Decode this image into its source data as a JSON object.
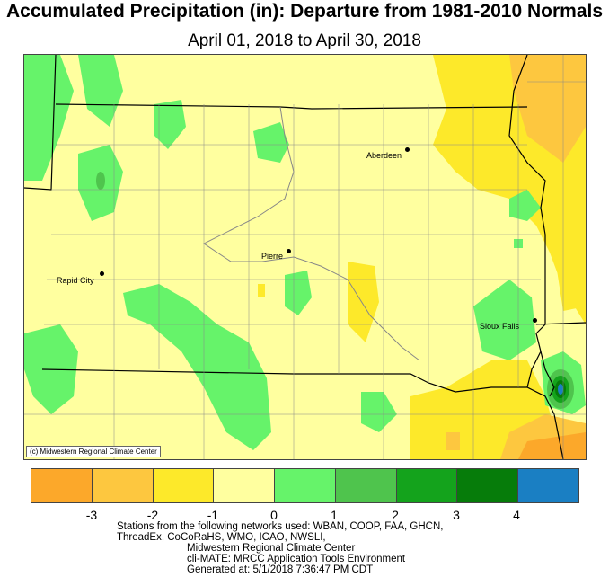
{
  "title": "Accumulated Precipitation (in): Departure from 1981-2010 Normals",
  "subtitle": "April 01, 2018 to April 30, 2018",
  "map": {
    "cities": [
      {
        "name": "Aberdeen"
      },
      {
        "name": "Pierre"
      },
      {
        "name": "Rapid City"
      },
      {
        "name": "Sioux Falls"
      }
    ],
    "credit": "(c) Midwestern Regional Climate Center"
  },
  "legend": {
    "colors": [
      "#fca82a",
      "#fdc73f",
      "#fde92a",
      "#ffff9f",
      "#66f36a",
      "#4fc44d",
      "#14a31c",
      "#067c0a",
      "#1a7fc3"
    ],
    "ticks": [
      "-3",
      "-2",
      "-1",
      "0",
      "1",
      "2",
      "3",
      "4"
    ]
  },
  "footer": {
    "line1": "Stations from the following networks used: WBAN, COOP, FAA, GHCN,",
    "line2": "ThreadEx, CoCoRaHS, WMO, ICAO, NWSLI,",
    "line3": "Midwestern Regional Climate Center",
    "line4": "cli-MATE: MRCC Application Tools Environment",
    "line5": "Generated at: 5/1/2018 7:36:47 PM CDT"
  }
}
